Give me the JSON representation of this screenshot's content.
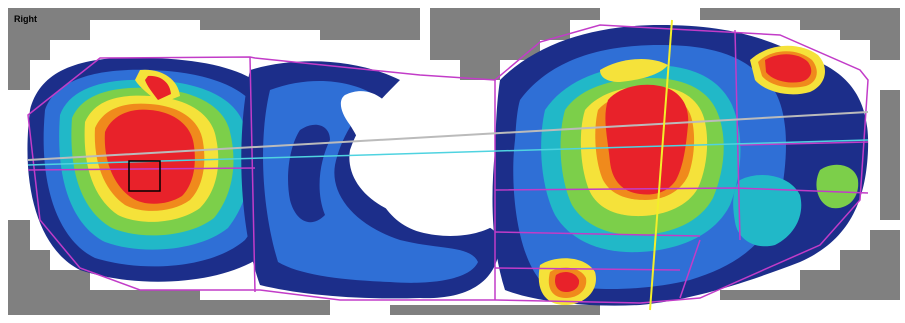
{
  "view": {
    "side_label": "Right"
  },
  "legend_colors": {
    "low": "#1c2e8a",
    "mid_low": "#2f6fd6",
    "mid": "#21b8c8",
    "mid_high": "#7ccf4a",
    "high": "#f5e23a",
    "very_high": "#f08a1c",
    "peak": "#e8222a",
    "outline": "#c23cc8",
    "axis_yellow": "#f3ee2a",
    "axis_gray": "#bbbbbb",
    "axis_cyan": "#4fd3e0",
    "background_gray": "#808080",
    "selection_box": "#000000"
  }
}
